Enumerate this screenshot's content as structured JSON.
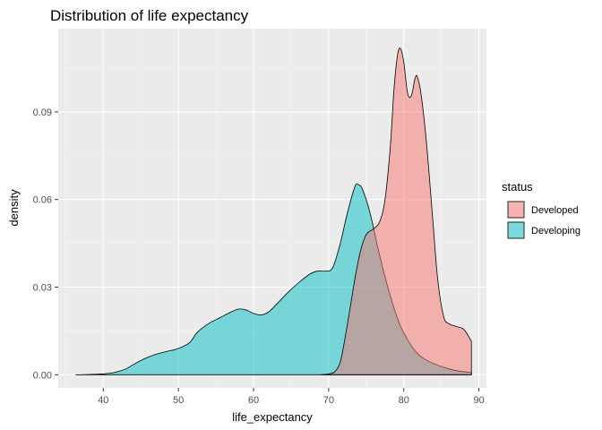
{
  "chart_data": {
    "type": "area",
    "subtype": "density",
    "title": "Distribution of life expectancy",
    "xlabel": "life_expectancy",
    "ylabel": "density",
    "xlim": [
      34,
      91
    ],
    "ylim": [
      -0.0045,
      0.1185
    ],
    "x_ticks": [
      40,
      50,
      60,
      70,
      80,
      90
    ],
    "x_tick_labels": [
      "40",
      "50",
      "60",
      "70",
      "80",
      "90"
    ],
    "y_ticks": [
      0.0,
      0.03,
      0.06,
      0.09
    ],
    "y_tick_labels": [
      "0.00",
      "0.03",
      "0.06",
      "0.09"
    ],
    "grid": true,
    "legend": {
      "title": "status",
      "position": "right"
    },
    "series": [
      {
        "name": "Developing",
        "color": "#00BFC4",
        "opacity": 0.5,
        "points": [
          [
            36.3,
            0.0
          ],
          [
            38,
            0.0001
          ],
          [
            40,
            0.0003
          ],
          [
            41.5,
            0.0008
          ],
          [
            43,
            0.002
          ],
          [
            44,
            0.0035
          ],
          [
            45.5,
            0.0055
          ],
          [
            47,
            0.007
          ],
          [
            48.5,
            0.008
          ],
          [
            50,
            0.009
          ],
          [
            51.5,
            0.011
          ],
          [
            52.5,
            0.0145
          ],
          [
            54,
            0.0175
          ],
          [
            55.5,
            0.0195
          ],
          [
            57,
            0.0215
          ],
          [
            58,
            0.0225
          ],
          [
            59,
            0.0222
          ],
          [
            60,
            0.021
          ],
          [
            61,
            0.0205
          ],
          [
            62,
            0.0215
          ],
          [
            63,
            0.024
          ],
          [
            64.5,
            0.028
          ],
          [
            66,
            0.0315
          ],
          [
            67.5,
            0.0345
          ],
          [
            68.5,
            0.0355
          ],
          [
            69.5,
            0.0355
          ],
          [
            70.5,
            0.0365
          ],
          [
            71.5,
            0.0445
          ],
          [
            72.5,
            0.0555
          ],
          [
            73.5,
            0.0645
          ],
          [
            74,
            0.065
          ],
          [
            74.5,
            0.0635
          ],
          [
            75.5,
            0.0555
          ],
          [
            76.5,
            0.044
          ],
          [
            77.5,
            0.0335
          ],
          [
            78.5,
            0.0245
          ],
          [
            79.5,
            0.017
          ],
          [
            80.5,
            0.012
          ],
          [
            81.5,
            0.0082
          ],
          [
            82.5,
            0.0058
          ],
          [
            84,
            0.0038
          ],
          [
            86,
            0.002
          ],
          [
            87.5,
            0.0012
          ],
          [
            89,
            0.0008
          ]
        ]
      },
      {
        "name": "Developed",
        "color": "#F8766D",
        "opacity": 0.5,
        "points": [
          [
            69,
            0.0
          ],
          [
            70,
            0.0003
          ],
          [
            70.8,
            0.001
          ],
          [
            71.5,
            0.004
          ],
          [
            72,
            0.01
          ],
          [
            72.8,
            0.022
          ],
          [
            73.5,
            0.033
          ],
          [
            74.2,
            0.042
          ],
          [
            75,
            0.048
          ],
          [
            76,
            0.05
          ],
          [
            76.8,
            0.0525
          ],
          [
            77.5,
            0.06
          ],
          [
            78.2,
            0.078
          ],
          [
            78.7,
            0.098
          ],
          [
            79.2,
            0.11
          ],
          [
            79.6,
            0.1115
          ],
          [
            80,
            0.107
          ],
          [
            80.5,
            0.0965
          ],
          [
            81,
            0.0955
          ],
          [
            81.5,
            0.1015
          ],
          [
            81.8,
            0.102
          ],
          [
            82.3,
            0.096
          ],
          [
            83,
            0.08
          ],
          [
            83.8,
            0.055
          ],
          [
            84.5,
            0.033
          ],
          [
            85.3,
            0.02
          ],
          [
            86,
            0.0175
          ],
          [
            87,
            0.0165
          ],
          [
            88,
            0.0155
          ],
          [
            89,
            0.0115
          ]
        ]
      }
    ]
  }
}
